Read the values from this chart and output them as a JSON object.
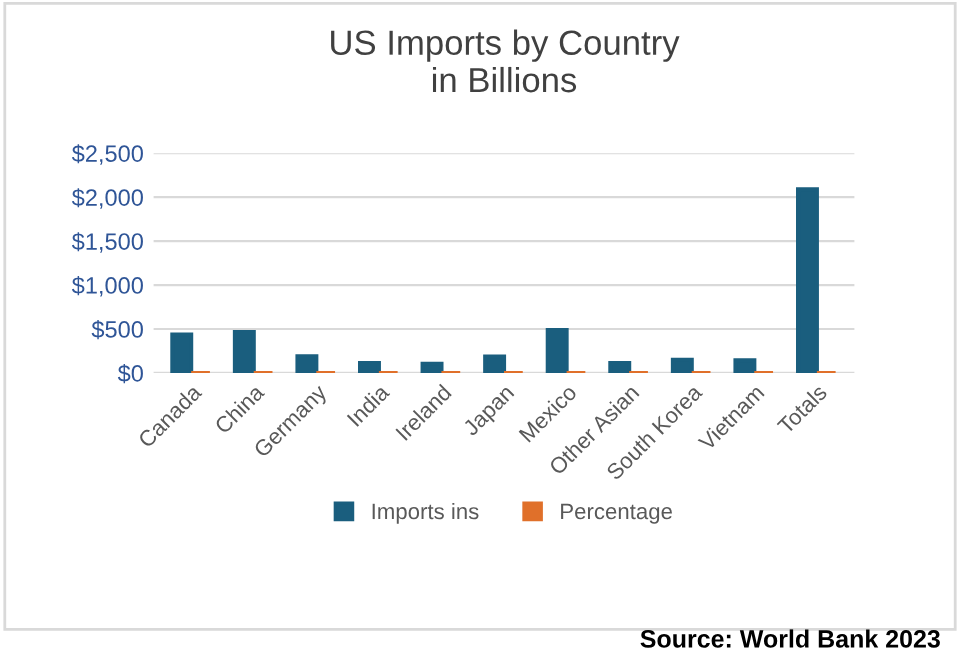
{
  "chart_data": {
    "type": "bar",
    "title": "US Imports by Country\nin Billions",
    "categories": [
      "Canada",
      "China",
      "Germany",
      "India",
      "Ireland",
      "Japan",
      "Mexico",
      "Other Asian",
      "South Korea",
      "Vietnam",
      "Totals"
    ],
    "series": [
      {
        "name": "Imports ins",
        "color": "#1a5e7e",
        "values": [
          437,
          466,
          189,
          113,
          105,
          185,
          489,
          113,
          150,
          145,
          2090
        ]
      },
      {
        "name": "Percentage",
        "color": "#e0702a",
        "values": [
          0,
          0,
          0,
          0,
          0,
          0,
          0,
          0,
          0,
          0,
          0
        ]
      }
    ],
    "ylim": [
      0,
      2500
    ],
    "yticks": [
      {
        "value": 0,
        "label": "$0"
      },
      {
        "value": 500,
        "label": "$500"
      },
      {
        "value": 1000,
        "label": "$1,000"
      },
      {
        "value": 1500,
        "label": "$1,500"
      },
      {
        "value": 2000,
        "label": "$2,000"
      },
      {
        "value": 2500,
        "label": "$2,500"
      }
    ],
    "grid": "y",
    "legend": "bottom",
    "annotations": [
      "Source: World Bank 2023"
    ]
  }
}
